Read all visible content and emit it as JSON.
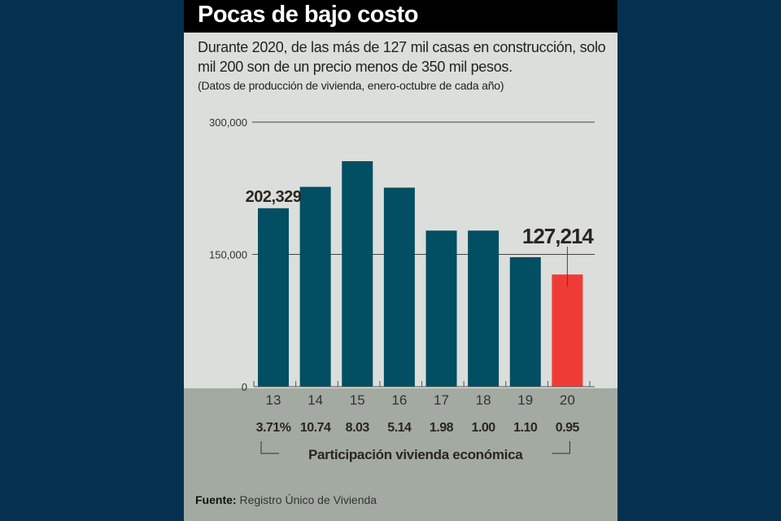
{
  "header": {
    "title": "Pocas de bajo costo",
    "subtitle": "Durante 2020, de las más de 127 mil casas en construcción, solo mil 200 son de un precio menos de 350 mil pesos.",
    "note": "(Datos de producción de vivienda, enero-octubre de cada año)"
  },
  "colors": {
    "bar": "#024e63",
    "highlight": "#ef3b36",
    "panel": "#dcdedb",
    "bottom": "#a3aaa2",
    "background": "#06304f",
    "titlebar": "#000000"
  },
  "chart_data": {
    "type": "bar",
    "title": "Pocas de bajo costo",
    "categories": [
      "13",
      "14",
      "15",
      "16",
      "17",
      "18",
      "19",
      "20"
    ],
    "values": [
      202329,
      226600,
      255700,
      225700,
      177000,
      177000,
      146800,
      127214
    ],
    "highlight_index": 7,
    "data_labels": [
      {
        "index": 0,
        "text": "202,329"
      },
      {
        "index": 7,
        "text": "127,214"
      }
    ],
    "yticks": [
      0,
      150000,
      300000
    ],
    "ytick_labels": [
      "0",
      "150,000",
      "300,000"
    ],
    "ylim": [
      0,
      300000
    ],
    "grid": true,
    "xlabel": "",
    "ylabel": "",
    "secondary_row": {
      "label": "Participación vivienda económica",
      "values": [
        "3.71%",
        "10.74",
        "8.03",
        "5.14",
        "1.98",
        "1.00",
        "1.10",
        "0.95"
      ]
    }
  },
  "footer": {
    "source_label": "Fuente:",
    "source_text": "Registro Único de Vivienda"
  }
}
